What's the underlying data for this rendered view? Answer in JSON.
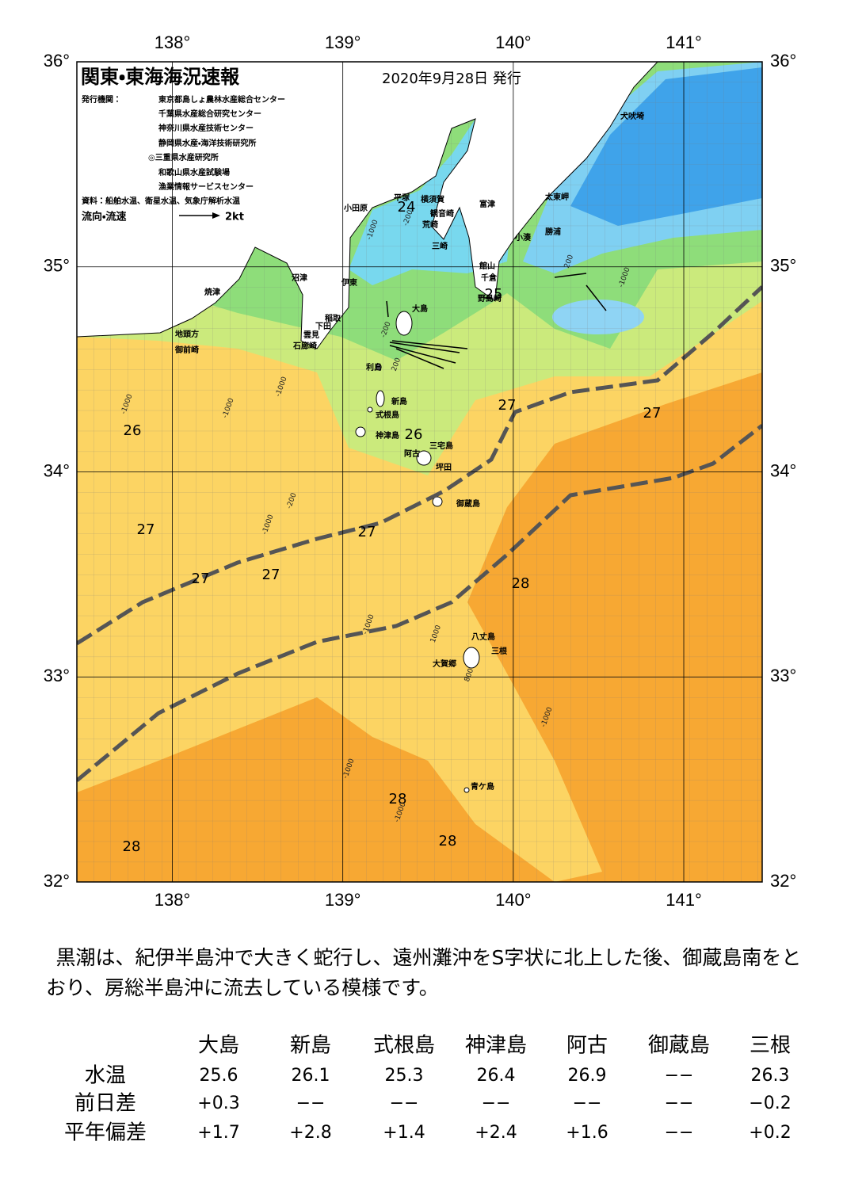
{
  "header": {
    "title": "関東・東海海況速報",
    "date": "2020年9月28日 発行",
    "issuer_label": "発行機関：",
    "issuers": [
      "東京都島しょ農林水産総合センター",
      "千葉県水産総合研究センター",
      "神奈川県水産技術センター",
      "静岡県水産・海洋技術研究所",
      "◎三重県水産研究所",
      "和歌山県水産試験場",
      "漁業情報サービスセンター"
    ],
    "source": "資料：船舶水温、衛星水温、気象庁解析水温",
    "flow_label": "流向・流速",
    "flow_scale": "2kt"
  },
  "map": {
    "xlim": [
      137.44,
      141.46
    ],
    "ylim": [
      32,
      36
    ],
    "xticks": [
      {
        "value": 138,
        "label": "138°"
      },
      {
        "value": 139,
        "label": "139°"
      },
      {
        "value": 140,
        "label": "140°"
      },
      {
        "value": 141,
        "label": "141°"
      }
    ],
    "yticks": [
      {
        "value": 32,
        "label": "32°"
      },
      {
        "value": 33,
        "label": "33°"
      },
      {
        "value": 34,
        "label": "34°"
      },
      {
        "value": 35,
        "label": "35°"
      },
      {
        "value": 36,
        "label": "36°"
      }
    ],
    "place_names": [
      "小田原",
      "平塚",
      "横須賀",
      "観音崎",
      "荒崎",
      "富津",
      "三崎",
      "太東岬",
      "勝浦",
      "小湊",
      "犬吠埼",
      "館山",
      "千倉",
      "野島崎",
      "沼津",
      "伊東",
      "焼津",
      "稲取",
      "下田",
      "雲見",
      "石廊崎",
      "地頭方",
      "御前崎",
      "大島",
      "利島",
      "新島",
      "式根島",
      "神津島",
      "阿古",
      "三宅島",
      "坪田",
      "御蔵島",
      "八丈島",
      "三根",
      "大賀郷",
      "青ケ島"
    ],
    "temperature_labels": [
      24,
      25,
      26,
      26,
      27,
      27,
      27,
      27,
      27,
      27,
      28,
      28,
      28,
      28
    ],
    "depth_labels": [
      -1000,
      -200,
      -200,
      200,
      -1000,
      -1000,
      -1000,
      -200,
      -1000,
      -1000,
      1000,
      800,
      -1000,
      -1000,
      -1000,
      -1000,
      200
    ]
  },
  "summary": "黒潮は、紀伊半島沖で大きく蛇行し、遠州灘沖をS字状に北上した後、御蔵島南をとおり、房総半島沖に流去している模様です。",
  "table": {
    "columns": [
      "大島",
      "新島",
      "式根島",
      "神津島",
      "阿古",
      "御蔵島",
      "三根"
    ],
    "rows": [
      [
        "水温",
        "25.6",
        "26.1",
        "25.3",
        "26.4",
        "26.9",
        "−−",
        "26.3"
      ],
      [
        "前日差",
        "+0.3",
        "−−",
        "−−",
        "−−",
        "−−",
        "−−",
        "−0.2"
      ],
      [
        "平年偏差",
        "+1.7",
        "+2.8",
        "+1.4",
        "+2.4",
        "+1.6",
        "−−",
        "+0.2"
      ]
    ]
  }
}
